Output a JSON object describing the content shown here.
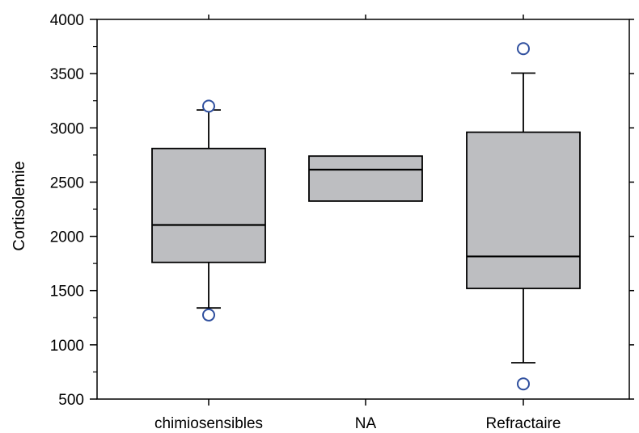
{
  "chart_data": {
    "type": "box",
    "ylabel": "Cortisolemie",
    "xlabel": "",
    "title": "",
    "ylim": [
      500,
      4000
    ],
    "yticks": [
      500,
      1000,
      1500,
      2000,
      2500,
      3000,
      3500,
      4000
    ],
    "categories": [
      "chimiosensibles",
      "NA",
      "Refractaire"
    ],
    "boxes": [
      {
        "category": "chimiosensibles",
        "whisker_low": 1340,
        "q1": 1760,
        "median": 2105,
        "q3": 2810,
        "whisker_high": 3165,
        "outliers": [
          1275,
          3200
        ]
      },
      {
        "category": "NA",
        "whisker_low": null,
        "q1": 2325,
        "median": 2615,
        "q3": 2740,
        "whisker_high": null,
        "outliers": []
      },
      {
        "category": "Refractaire",
        "whisker_low": 835,
        "q1": 1520,
        "median": 1815,
        "q3": 2960,
        "whisker_high": 3505,
        "outliers": [
          640,
          3730
        ]
      }
    ],
    "box_fill": "#bdbec1",
    "outlier_color": "#2f4f9e",
    "grid": false
  }
}
